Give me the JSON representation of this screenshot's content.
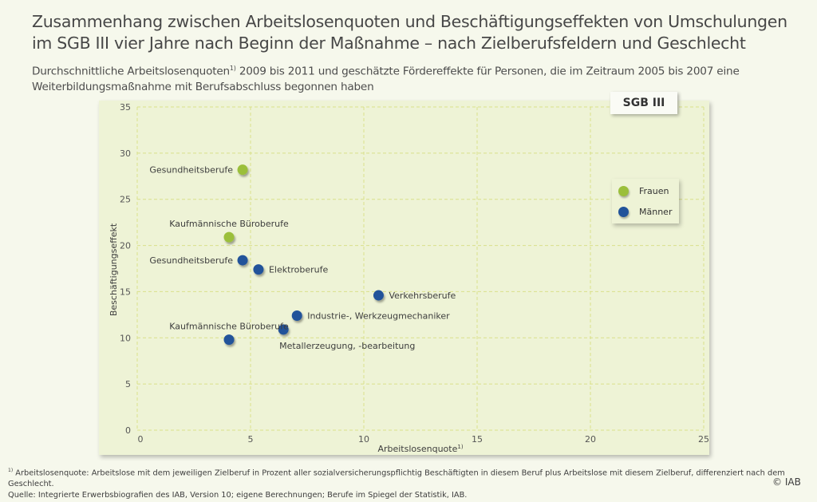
{
  "header": {
    "title_line1": "Zusammenhang zwischen Arbeitslosenquoten und Beschäftigungseffekten von Umschulungen",
    "title_line2": "im SGB III vier Jahre nach Beginn der Maßnahme – nach Zielberufsfeldern und Geschlecht",
    "subtitle_part1": "Durchschnittliche Arbeitslosenquoten",
    "subtitle_sup": "1)",
    "subtitle_part2": " 2009 bis 2011 und geschätzte Fördereffekte für Personen, die im Zeitraum 2005 bis 2007 eine",
    "subtitle_line2": "Weiterbildungsmaßnahme mit Berufsabschluss begonnen haben"
  },
  "badge": "SGB III",
  "chart_data": {
    "type": "scatter",
    "title": "Zusammenhang zwischen Arbeitslosenquoten und Beschäftigungseffekten von Umschulungen im SGB III vier Jahre nach Beginn der Maßnahme – nach Zielberufsfeldern und Geschlecht",
    "xlabel": "Arbeitslosenquote",
    "xlabel_sup": "1)",
    "ylabel": "Beschäftigungseffekt",
    "xlim": [
      0,
      25
    ],
    "ylim": [
      0,
      35
    ],
    "xticks": [
      0,
      5,
      10,
      15,
      20,
      25
    ],
    "yticks": [
      0,
      5,
      10,
      15,
      20,
      25,
      30,
      35
    ],
    "grid": true,
    "legend_position": "top-right",
    "series": [
      {
        "name": "Frauen",
        "color": "#9bbf3b",
        "points": [
          {
            "label": "Gesundheitsberufe",
            "x": 4.65,
            "y": 28.2,
            "label_pos": "left"
          },
          {
            "label": "Kaufmännische Büroberufe",
            "x": 4.05,
            "y": 20.9,
            "label_pos": "above"
          }
        ]
      },
      {
        "name": "Männer",
        "color": "#21539a",
        "points": [
          {
            "label": "Gesundheitsberufe",
            "x": 4.65,
            "y": 18.4,
            "label_pos": "left"
          },
          {
            "label": "Elektroberufe",
            "x": 5.35,
            "y": 17.4,
            "label_pos": "right"
          },
          {
            "label": "Verkehrsberufe",
            "x": 10.65,
            "y": 14.6,
            "label_pos": "right"
          },
          {
            "label": "Industrie-, Werkzeugmechaniker",
            "x": 7.05,
            "y": 12.4,
            "label_pos": "right"
          },
          {
            "label": "Metallerzeugung, -bearbeitung",
            "x": 6.45,
            "y": 10.9,
            "label_pos": "below"
          },
          {
            "label": "Kaufmännische Büroberufe",
            "x": 4.05,
            "y": 9.8,
            "label_pos": "above"
          }
        ]
      }
    ]
  },
  "footer": {
    "footnote_sup": "1)",
    "footnote": " Arbeitslosenquote: Arbeitslose mit dem jeweiligen Zielberuf in Prozent aller sozialversicherungspflichtig Beschäftigten in diesem Beruf plus Arbeitslose mit diesem Zielberuf, differenziert nach dem Geschlecht.",
    "source": "Quelle: Integrierte Erwerbsbiografien des IAB, Version 10; eigene Berechnungen; Berufe im Spiegel der Statistik, IAB.",
    "copyright": "© IAB"
  }
}
